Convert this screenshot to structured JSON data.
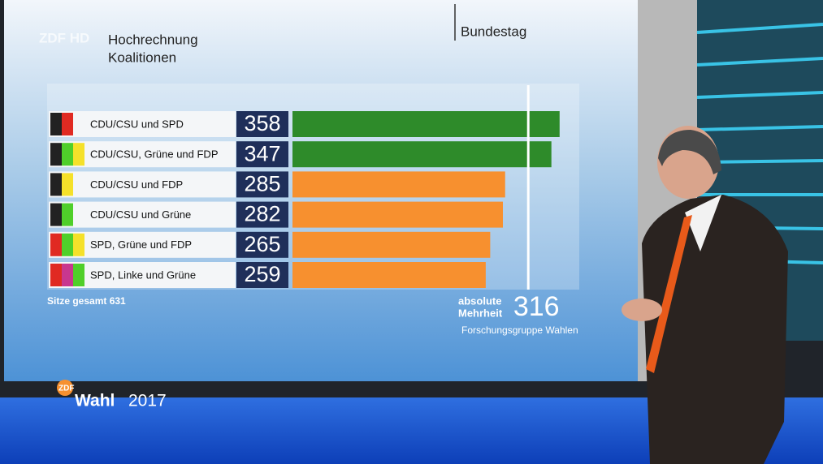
{
  "chart_data": {
    "type": "bar",
    "orientation": "horizontal",
    "title": "Hochrechnung",
    "subtitle": "Koalitionen",
    "header": "Bundestag",
    "categories": [
      "CDU/CSU und SPD",
      "CDU/CSU, Grüne und FDP",
      "CDU/CSU und FDP",
      "CDU/CSU und Grüne",
      "SPD, Grüne und FDP",
      "SPD, Linke und Grüne"
    ],
    "values": [
      358,
      347,
      285,
      282,
      265,
      259
    ],
    "colors": [
      "#2e8b2a",
      "#2e8b2a",
      "#f7902f",
      "#f7902f",
      "#f7902f",
      "#f7902f"
    ],
    "party_colors": [
      [
        "#222222",
        "#e02a22"
      ],
      [
        "#222222",
        "#4fcf2a",
        "#f5e12a"
      ],
      [
        "#222222",
        "#f5e12a"
      ],
      [
        "#222222",
        "#4fcf2a"
      ],
      [
        "#e02a22",
        "#4fcf2a",
        "#f5e12a"
      ],
      [
        "#e02a22",
        "#c8378f",
        "#4fcf2a"
      ]
    ],
    "xlim": [
      0,
      380
    ],
    "threshold": {
      "value": 316,
      "label_1": "absolute",
      "label_2": "Mehrheit"
    },
    "note": "Sitze gesamt 631",
    "source": "Forschungsgruppe Wahlen",
    "channel": "ZDF HD",
    "logo": {
      "brand": "ZDF",
      "word": "Wahl",
      "year": "2017"
    }
  }
}
